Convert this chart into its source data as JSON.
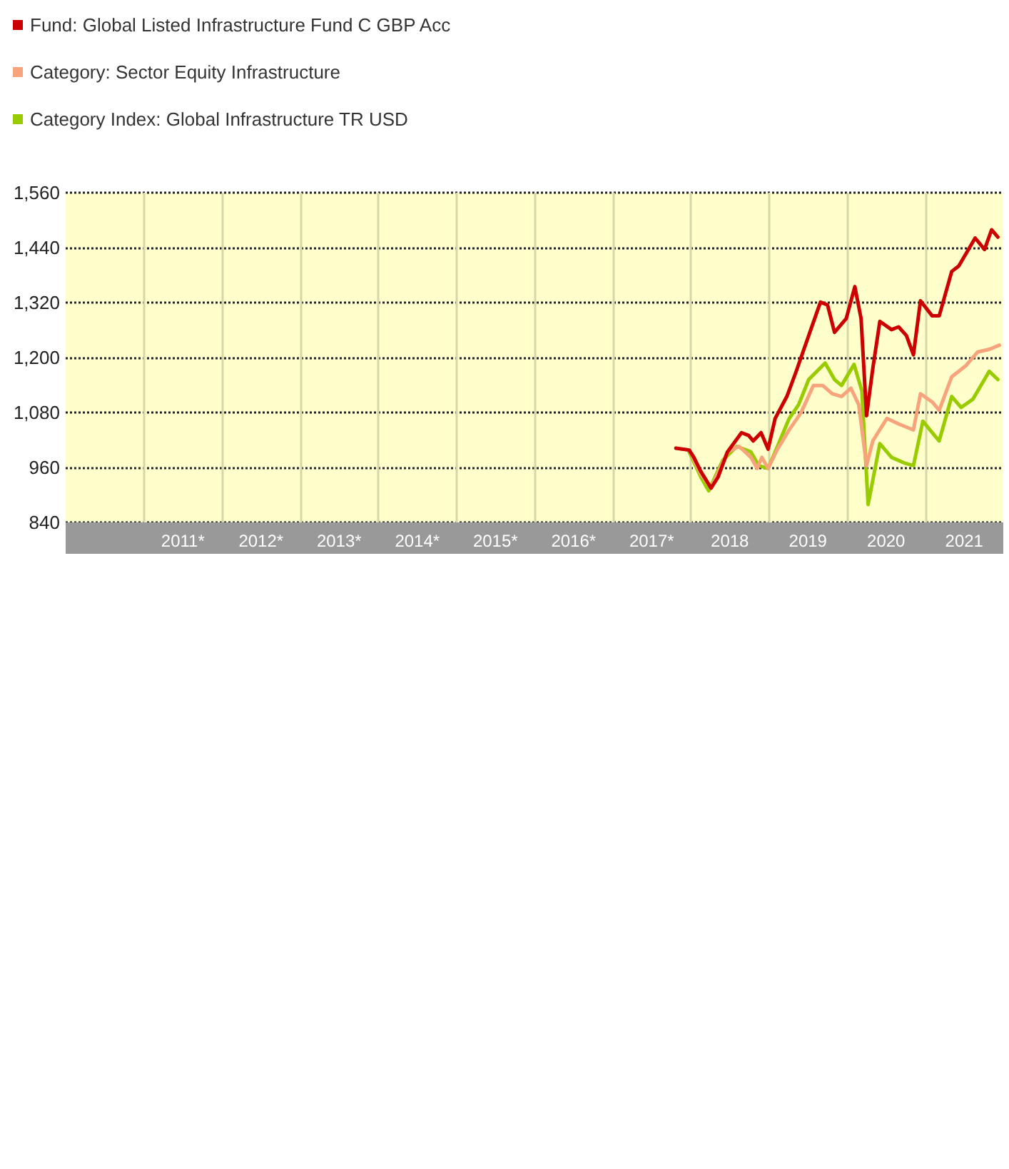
{
  "chart_data": {
    "type": "line",
    "legend": "top left",
    "grid": true,
    "line_style": "solid",
    "marker": "none",
    "xlim": [
      2010,
      2022
    ],
    "xticks": [
      {
        "value": 2011,
        "label": null
      },
      {
        "value": 2012,
        "label": null
      },
      {
        "value": 2013,
        "label": null
      },
      {
        "value": 2014,
        "label": null
      },
      {
        "value": 2015,
        "label": null
      },
      {
        "value": 2016,
        "label": null
      },
      {
        "value": 2017,
        "label": null
      },
      {
        "value": 2018,
        "label": null
      },
      {
        "value": 2019,
        "label": null
      },
      {
        "value": 2020,
        "label": null
      },
      {
        "value": 2021,
        "label": null
      },
      {
        "value": 2011.5,
        "label": "2011*"
      },
      {
        "value": 2012.5,
        "label": "2012*"
      },
      {
        "value": 2013.5,
        "label": "2013*"
      },
      {
        "value": 2014.5,
        "label": "2014*"
      },
      {
        "value": 2015.5,
        "label": "2015*"
      },
      {
        "value": 2016.5,
        "label": "2016*"
      },
      {
        "value": 2017.5,
        "label": "2017*"
      },
      {
        "value": 2018.5,
        "label": "2018"
      },
      {
        "value": 2019.5,
        "label": "2019"
      },
      {
        "value": 2020.5,
        "label": "2020"
      },
      {
        "value": 2021.5,
        "label": "2021"
      }
    ],
    "ylim": [
      840,
      1560
    ],
    "yticks": [
      {
        "value": 840,
        "label": "840"
      },
      {
        "value": 960,
        "label": "960"
      },
      {
        "value": 1080,
        "label": "1,080"
      },
      {
        "value": 1200,
        "label": "1,200"
      },
      {
        "value": 1320,
        "label": "1,320"
      },
      {
        "value": 1440,
        "label": "1,440"
      },
      {
        "value": 1560,
        "label": "1,560"
      }
    ],
    "series": [
      {
        "name": "Fund: Global Listed Infrastructure Fund C GBP Acc",
        "color": "#cc0000",
        "x": [
          2017.81,
          2017.98,
          2018.04,
          2018.13,
          2018.26,
          2018.35,
          2018.47,
          2018.65,
          2018.74,
          2018.8,
          2018.9,
          2018.99,
          2019.08,
          2019.23,
          2019.35,
          2019.51,
          2019.66,
          2019.75,
          2019.84,
          2019.99,
          2020.1,
          2020.18,
          2020.25,
          2020.33,
          2020.42,
          2020.57,
          2020.66,
          2020.76,
          2020.85,
          2020.94,
          2021.09,
          2021.18,
          2021.34,
          2021.43,
          2021.64,
          2021.76,
          2021.85,
          2021.93
        ],
        "values": [
          1002,
          998,
          982,
          951,
          915,
          939,
          994,
          1036,
          1030,
          1018,
          1036,
          1000,
          1067,
          1115,
          1170,
          1248,
          1321,
          1315,
          1255,
          1285,
          1355,
          1285,
          1073,
          1176,
          1279,
          1261,
          1267,
          1248,
          1206,
          1324,
          1291,
          1291,
          1388,
          1400,
          1461,
          1436,
          1479,
          1463
        ]
      },
      {
        "name": "Category: Sector Equity Infrastructure",
        "color": "#f7a47c",
        "x": [
          2017.81,
          2017.98,
          2018.13,
          2018.26,
          2018.47,
          2018.62,
          2018.77,
          2018.85,
          2018.91,
          2018.99,
          2019.11,
          2019.26,
          2019.41,
          2019.57,
          2019.69,
          2019.81,
          2019.93,
          2020.05,
          2020.15,
          2020.25,
          2020.33,
          2020.51,
          2020.66,
          2020.85,
          2020.94,
          2021.09,
          2021.18,
          2021.34,
          2021.52,
          2021.67,
          2021.82,
          2021.95
        ],
        "values": [
          1002,
          998,
          945,
          915,
          994,
          1006,
          982,
          958,
          982,
          958,
          1000,
          1042,
          1079,
          1139,
          1139,
          1121,
          1115,
          1133,
          1097,
          964,
          1018,
          1067,
          1055,
          1042,
          1121,
          1103,
          1085,
          1158,
          1182,
          1212,
          1218,
          1227
        ]
      },
      {
        "name": "Category Index: Global Infrastructure TR USD",
        "color": "#99cc00",
        "x": [
          2017.98,
          2018.13,
          2018.23,
          2018.41,
          2018.59,
          2018.77,
          2018.87,
          2018.99,
          2019.11,
          2019.26,
          2019.38,
          2019.51,
          2019.72,
          2019.84,
          2019.93,
          2020.09,
          2020.19,
          2020.27,
          2020.42,
          2020.57,
          2020.73,
          2020.85,
          2020.97,
          2021.12,
          2021.18,
          2021.34,
          2021.46,
          2021.61,
          2021.82,
          2021.93
        ],
        "values": [
          994,
          939,
          909,
          976,
          1006,
          994,
          964,
          958,
          1006,
          1067,
          1097,
          1152,
          1188,
          1152,
          1139,
          1185,
          1127,
          879,
          1012,
          982,
          970,
          964,
          1061,
          1030,
          1018,
          1115,
          1091,
          1109,
          1170,
          1152
        ]
      }
    ]
  }
}
